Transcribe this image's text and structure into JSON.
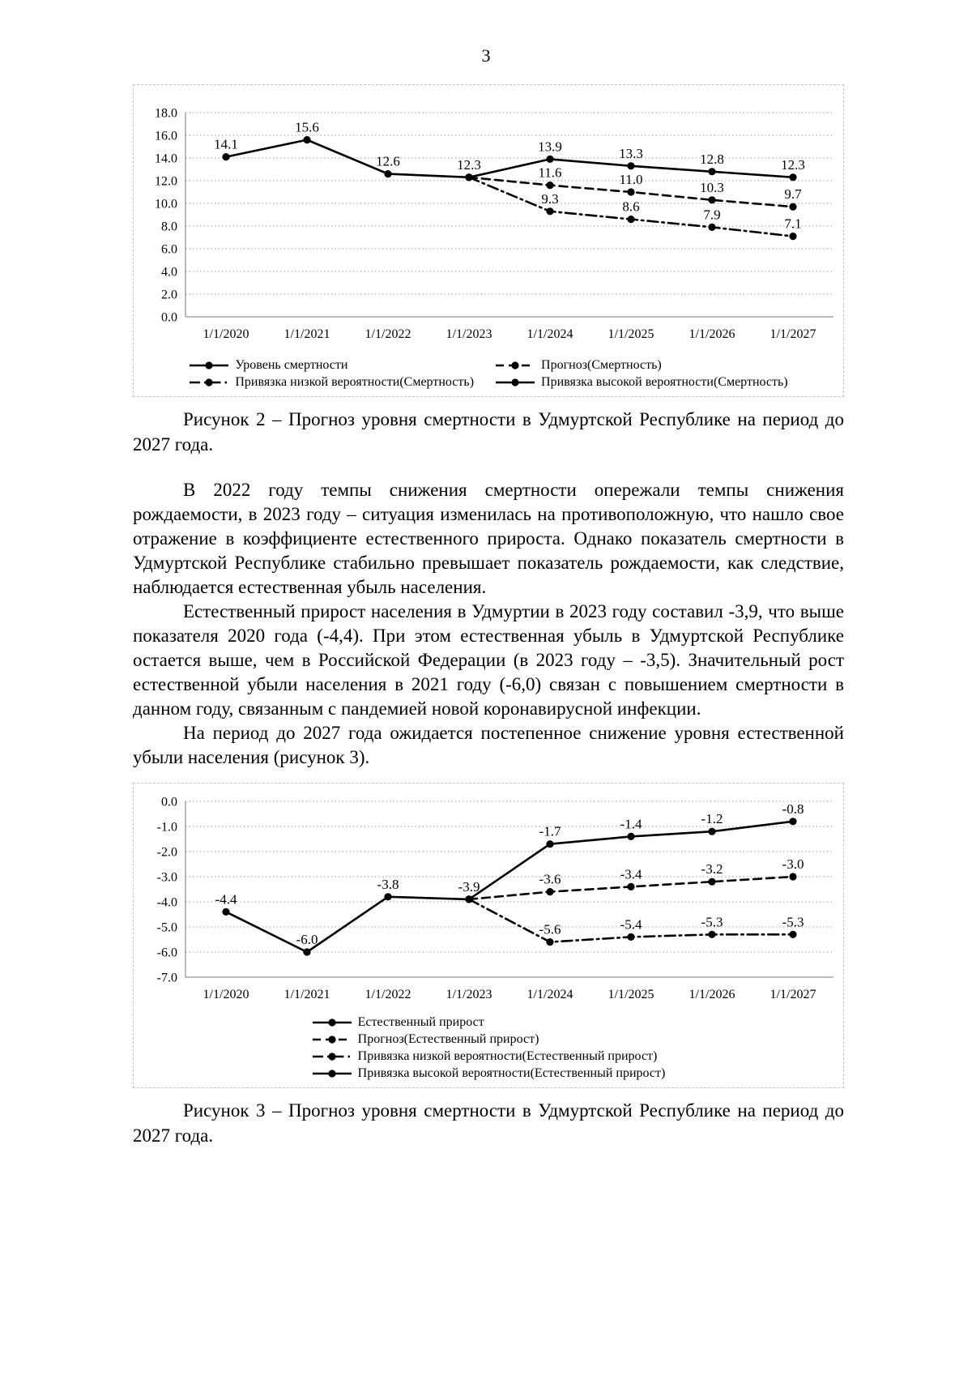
{
  "page": {
    "number": "3"
  },
  "captions": {
    "figure2": "Рисунок 2 – Прогноз уровня смертности в Удмуртской Республике на период до 2027 года.",
    "figure3": "Рисунок 3 – Прогноз уровня смертности в Удмуртской Республике на период до 2027 года."
  },
  "paragraphs": {
    "p1": "В 2022 году темпы снижения смертности опережали темпы снижения рождаемости, в 2023 году – ситуация изменилась на противоположную, что нашло свое отражение в коэффициенте естественного прироста. Однако показатель смертности в Удмуртской Республике стабильно превышает показатель рождаемости, как следствие, наблюдается естественная убыль населения.",
    "p2": "Естественный прирост населения в Удмуртии в 2023 году составил -3,9, что выше показателя 2020 года (-4,4). При этом естественная убыль в Удмуртской Республике остается выше, чем в Российской Федерации (в 2023 году – -3,5). Значительный рост естественной убыли населения в 2021 году (-6,0) связан с повышением смертности в данном году, связанным с пандемией новой коронавирусной инфекции.",
    "p3": "На период до 2027 года ожидается постепенное снижение уровня естественной убыли населения (рисунок 3)."
  },
  "chart_data": [
    {
      "type": "line",
      "name": "mortality-forecast",
      "title": "",
      "xlabel": "",
      "ylabel": "",
      "grid": "dotted-horizontal",
      "legend_position": "bottom",
      "legend_layout": "grid2",
      "categories": [
        "1/1/2020",
        "1/1/2021",
        "1/1/2022",
        "1/1/2023",
        "1/1/2024",
        "1/1/2025",
        "1/1/2026",
        "1/1/2027"
      ],
      "ylim": [
        0,
        18
      ],
      "ytick_step": 2,
      "series": [
        {
          "name": "Уровень смертности",
          "style": "solid",
          "values": [
            14.1,
            15.6,
            12.6,
            12.3,
            null,
            null,
            null,
            null
          ],
          "labels": [
            "14.1",
            "15.6",
            "12.6",
            "12.3",
            null,
            null,
            null,
            null
          ]
        },
        {
          "name": "Прогноз(Смертность)",
          "style": "dashed",
          "values": [
            null,
            null,
            null,
            12.3,
            11.6,
            11.0,
            10.3,
            9.7
          ],
          "labels": [
            null,
            null,
            null,
            null,
            "11.6",
            "11.0",
            "10.3",
            "9.7"
          ]
        },
        {
          "name": "Привязка низкой вероятности(Смертность)",
          "style": "dashdot",
          "values": [
            null,
            null,
            null,
            12.3,
            9.3,
            8.6,
            7.9,
            7.1
          ],
          "labels": [
            null,
            null,
            null,
            null,
            "9.3",
            "8.6",
            "7.9",
            "7.1"
          ]
        },
        {
          "name": "Привязка высокой вероятности(Смертность)",
          "style": "solid",
          "values": [
            null,
            null,
            null,
            12.3,
            13.9,
            13.3,
            12.8,
            12.3
          ],
          "labels": [
            null,
            null,
            null,
            null,
            "13.9",
            "13.3",
            "12.8",
            "12.3"
          ]
        }
      ]
    },
    {
      "type": "line",
      "name": "natural-growth-forecast",
      "title": "",
      "xlabel": "",
      "ylabel": "",
      "grid": "dotted-horizontal",
      "legend_position": "bottom",
      "legend_layout": "column",
      "categories": [
        "1/1/2020",
        "1/1/2021",
        "1/1/2022",
        "1/1/2023",
        "1/1/2024",
        "1/1/2025",
        "1/1/2026",
        "1/1/2027"
      ],
      "ylim": [
        -7,
        0
      ],
      "ytick_step": 1,
      "series": [
        {
          "name": "Естественный прирост",
          "style": "solid",
          "values": [
            -4.4,
            -6.0,
            -3.8,
            -3.9,
            null,
            null,
            null,
            null
          ],
          "labels": [
            "-4.4",
            "-6.0",
            "-3.8",
            "-3.9",
            null,
            null,
            null,
            null
          ]
        },
        {
          "name": "Прогноз(Естественный прирост)",
          "style": "dashed",
          "values": [
            null,
            null,
            null,
            -3.9,
            -3.6,
            -3.4,
            -3.2,
            -3.0
          ],
          "labels": [
            null,
            null,
            null,
            null,
            "-3.6",
            "-3.4",
            "-3.2",
            "-3.0"
          ]
        },
        {
          "name": "Привязка низкой вероятности(Естественный прирост)",
          "style": "dashdot",
          "values": [
            null,
            null,
            null,
            -3.9,
            -5.6,
            -5.4,
            -5.3,
            -5.3
          ],
          "labels": [
            null,
            null,
            null,
            null,
            "-5.6",
            "-5.4",
            "-5.3",
            "-5.3"
          ]
        },
        {
          "name": "Привязка высокой вероятности(Естественный прирост)",
          "style": "solid",
          "values": [
            null,
            null,
            null,
            -3.9,
            -1.7,
            -1.4,
            -1.2,
            -0.8
          ],
          "labels": [
            null,
            null,
            null,
            null,
            "-1.7",
            "-1.4",
            "-1.2",
            "-0.8"
          ]
        }
      ]
    }
  ]
}
